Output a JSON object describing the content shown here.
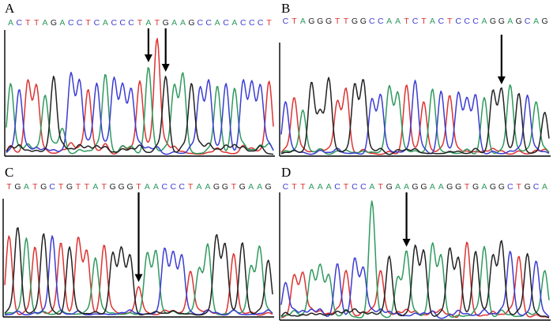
{
  "colors": {
    "A": "#2f9a5e",
    "C": "#3c3cd2",
    "G": "#222222",
    "T": "#dd3333",
    "frame": "#000000"
  },
  "panels": [
    {
      "letter": "A",
      "sequence": "ACTTAGACCTCACCCTATGAAGCCACACCCT",
      "arrow_positions": [
        17,
        19
      ],
      "peak_heights": [
        0.6,
        0.55,
        0.62,
        0.58,
        0.5,
        0.66,
        0.22,
        0.68,
        0.62,
        0.55,
        0.6,
        0.68,
        0.64,
        0.58,
        0.55,
        0.62,
        0.74,
        0.98,
        0.66,
        0.58,
        0.68,
        0.6,
        0.56,
        0.62,
        0.58,
        0.6,
        0.56,
        0.62,
        0.6,
        0.58,
        0.62
      ],
      "baseline_noise": 0.1
    },
    {
      "letter": "B",
      "sequence": "CTAGGGTTGGCCAATCTACTCCCAGGAGCAG",
      "arrow_positions": [
        26
      ],
      "peak_heights": [
        0.5,
        0.54,
        0.42,
        0.68,
        0.4,
        0.72,
        0.5,
        0.62,
        0.66,
        0.7,
        0.52,
        0.56,
        0.64,
        0.58,
        0.66,
        0.7,
        0.5,
        0.62,
        0.6,
        0.56,
        0.58,
        0.52,
        0.56,
        0.54,
        0.6,
        0.62,
        0.66,
        0.58,
        0.56,
        0.5,
        0.4
      ],
      "baseline_noise": 0.06
    },
    {
      "letter": "C",
      "sequence": "TGATGCTGTTATGGGTAACCCTAAGGTGAAG",
      "arrow_positions": [
        16
      ],
      "peak_heights": [
        0.72,
        0.8,
        0.7,
        0.62,
        0.74,
        0.72,
        0.66,
        0.62,
        0.7,
        0.58,
        0.52,
        0.64,
        0.56,
        0.6,
        0.54,
        0.26,
        0.56,
        0.58,
        0.6,
        0.56,
        0.54,
        0.4,
        0.42,
        0.64,
        0.72,
        0.64,
        0.56,
        0.66,
        0.44,
        0.62,
        0.5
      ],
      "baseline_noise": 0.05
    },
    {
      "letter": "D",
      "sequence": "CTTAAACTCCATGAAGGAAGGTGAGGCTGCA",
      "arrow_positions": [
        15
      ],
      "peak_heights": [
        0.3,
        0.36,
        0.38,
        0.4,
        0.44,
        0.36,
        0.46,
        0.4,
        0.5,
        0.42,
        0.98,
        0.4,
        0.52,
        0.34,
        0.56,
        0.6,
        0.56,
        0.62,
        0.52,
        0.58,
        0.5,
        0.64,
        0.56,
        0.6,
        0.52,
        0.64,
        0.56,
        0.52,
        0.54,
        0.48,
        0.4
      ],
      "baseline_noise": 0.08
    }
  ]
}
